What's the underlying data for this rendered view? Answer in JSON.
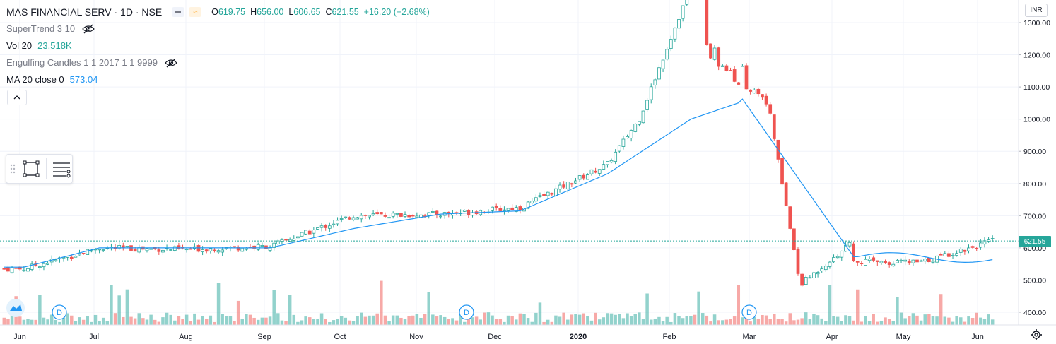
{
  "header": {
    "symbol": "MAS FINANCIAL SERV · 1D · NSE",
    "ohlc": {
      "o_label": "O",
      "o_value": "619.75",
      "h_label": "H",
      "h_value": "656.00",
      "l_label": "L",
      "l_value": "606.65",
      "c_label": "C",
      "c_value": "621.55",
      "change": "+16.20 (+2.68%)"
    },
    "currency": "INR"
  },
  "indicators": [
    {
      "name": "SuperTrend 3 10",
      "value": "",
      "hidden": true
    },
    {
      "name": "Vol 20",
      "value": "23.518K",
      "hidden": false
    },
    {
      "name": "Engulfing Candles 1 1 2017 1 1 9999",
      "value": "",
      "hidden": true
    },
    {
      "name": "MA 20 close 0",
      "value": "573.04",
      "hidden": false
    }
  ],
  "colors": {
    "up": "#26a69a",
    "down": "#ef5350",
    "ma": "#2196f3",
    "grid": "#f0f3fa",
    "axis_text": "#131722"
  },
  "price_axis": {
    "ticks": [
      "1300.00",
      "1200.00",
      "1100.00",
      "1000.00",
      "900.00",
      "800.00",
      "700.00",
      "600.00",
      "500.00",
      "400.00"
    ],
    "last_price": "621.55"
  },
  "time_axis": {
    "labels": [
      "Jun",
      "Jul",
      "Aug",
      "Sep",
      "Oct",
      "Nov",
      "Dec",
      "2020",
      "Feb",
      "Mar",
      "Apr",
      "May",
      "Jun"
    ]
  },
  "dividend_markers": [
    "D",
    "D",
    "D"
  ],
  "chart_data": {
    "type": "candlestick",
    "x": [
      "2019-06",
      "2019-07",
      "2019-08",
      "2019-09",
      "2019-10",
      "2019-11",
      "2019-12",
      "2020-01",
      "2020-02",
      "2020-03",
      "2020-04",
      "2020-05",
      "2020-06"
    ],
    "close_approx": [
      535,
      600,
      595,
      605,
      700,
      705,
      725,
      860,
      1230,
      1050,
      560,
      555,
      621.55
    ],
    "ma20_approx": [
      540,
      600,
      600,
      600,
      660,
      705,
      715,
      830,
      1000,
      1080,
      580,
      590,
      573.04
    ],
    "ylim": [
      380,
      1310
    ],
    "last": {
      "open": 619.75,
      "high": 656.0,
      "low": 606.65,
      "close": 621.55,
      "change": "+16.20 (+2.68%)"
    }
  }
}
